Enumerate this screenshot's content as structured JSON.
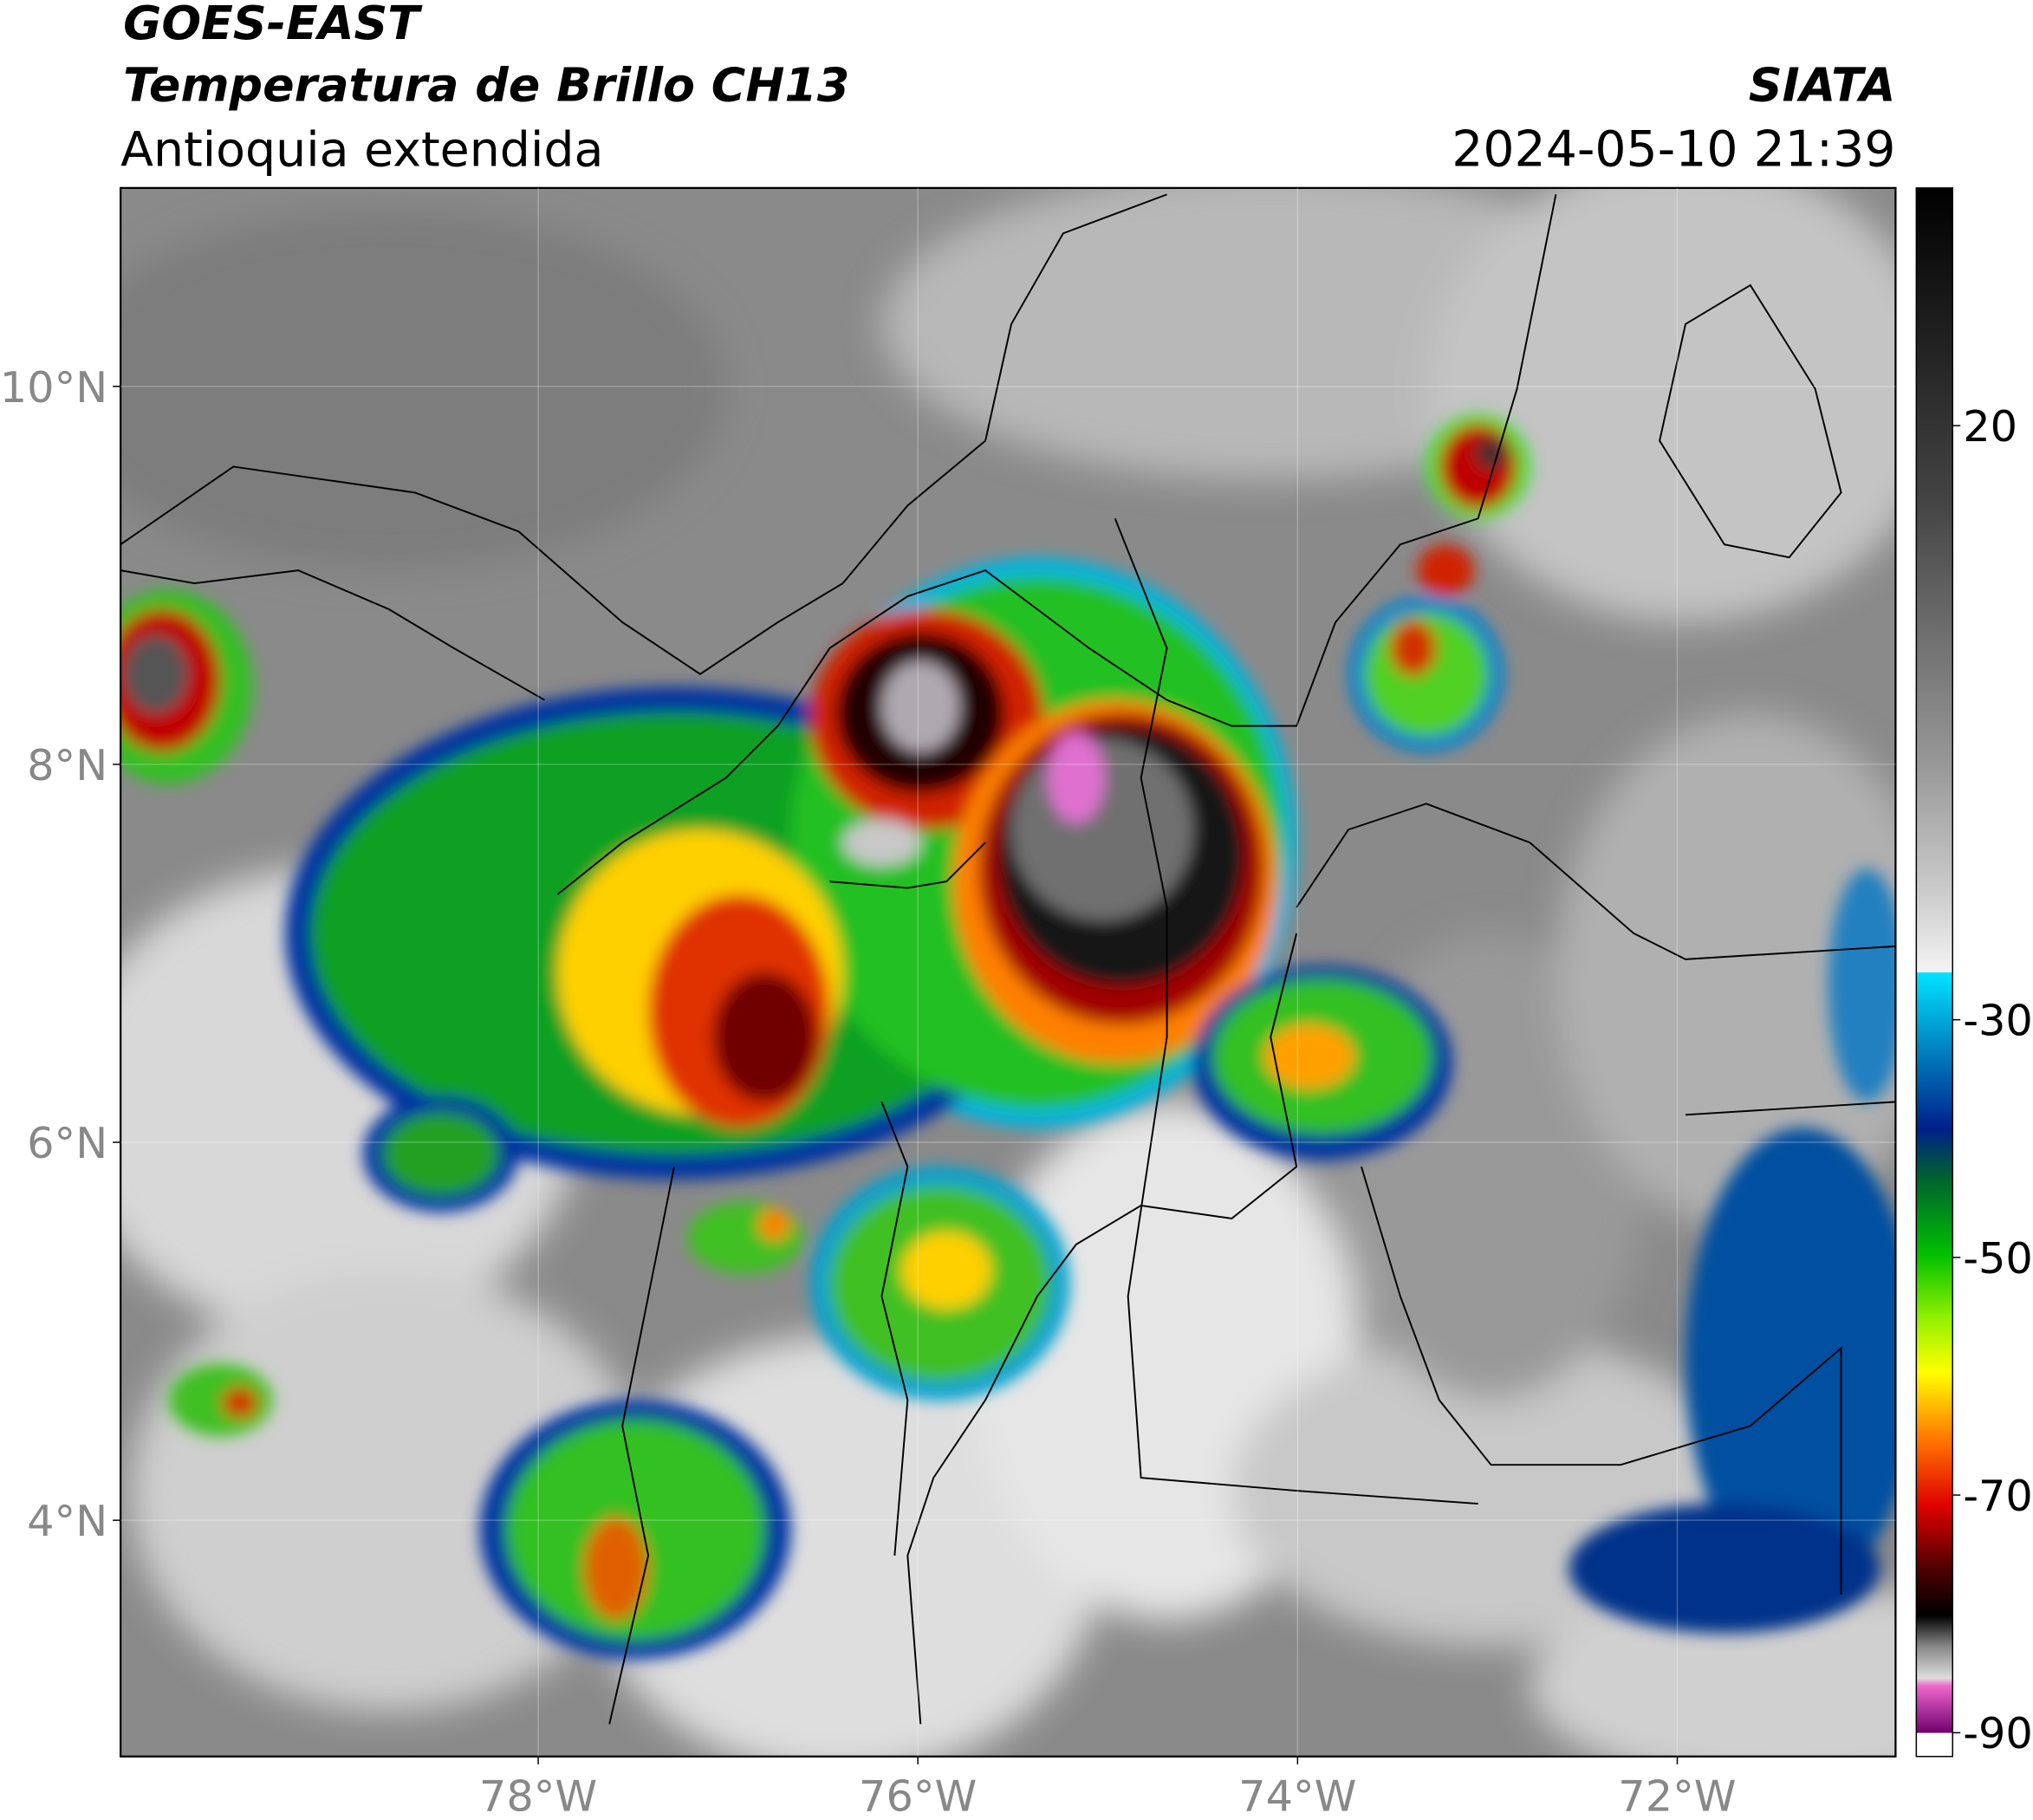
{
  "header": {
    "title": "GOES-EAST",
    "subtitle": "Temperatura de Brillo CH13",
    "region": "Antioquia extendida",
    "source": "SIATA",
    "datetime": "2024-05-10 21:39"
  },
  "map": {
    "xlim": [
      -80.2,
      -70.85
    ],
    "ylim": [
      2.75,
      11.05
    ],
    "xticks": [
      {
        "value": -78,
        "label": "78°W"
      },
      {
        "value": -76,
        "label": "76°W"
      },
      {
        "value": -74,
        "label": "74°W"
      },
      {
        "value": -72,
        "label": "72°W"
      }
    ],
    "yticks": [
      {
        "value": 10,
        "label": "10°N"
      },
      {
        "value": 8,
        "label": "8°N"
      },
      {
        "value": 6,
        "label": "6°N"
      },
      {
        "value": 4,
        "label": "4°N"
      }
    ],
    "grid": true
  },
  "colorbar": {
    "lim": [
      -92,
      40
    ],
    "ticks": [
      20,
      -30,
      -50,
      -70,
      -90
    ]
  }
}
